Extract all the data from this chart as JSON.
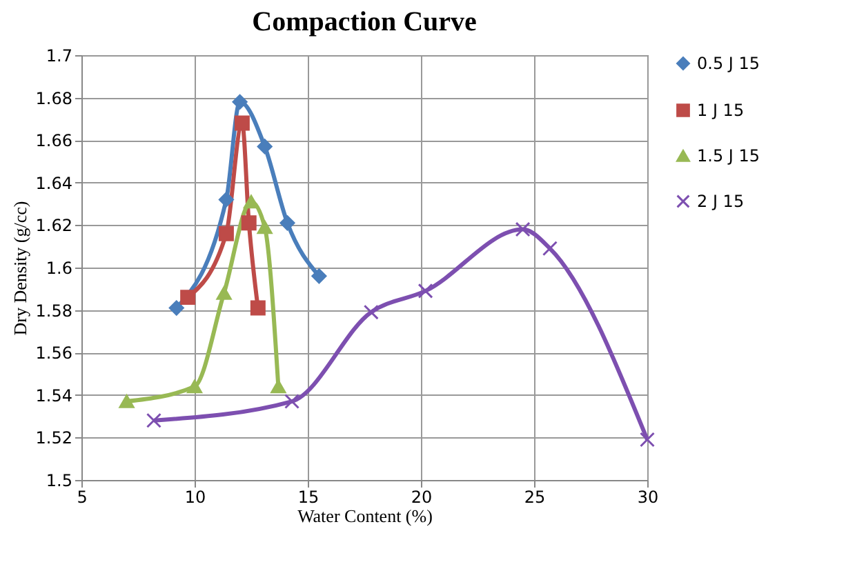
{
  "chart_data": {
    "type": "line",
    "title": "Compaction Curve",
    "xlabel": "Water Content (%)",
    "ylabel": "Dry Density (g/cc)",
    "xlim": [
      5,
      30
    ],
    "xticks": [
      5,
      10,
      15,
      20,
      25,
      30
    ],
    "ylim": [
      1.5,
      1.7
    ],
    "yticks": [
      1.5,
      1.52,
      1.54,
      1.56,
      1.58,
      1.6,
      1.62,
      1.64,
      1.66,
      1.68,
      1.7
    ],
    "grid": true,
    "legend": "right",
    "line_style": "solid",
    "series": [
      {
        "name": "0.5 J 15",
        "color": "#4a7ebb",
        "marker": "diamond",
        "x": [
          9.2,
          11.4,
          12.0,
          13.1,
          14.1,
          15.5
        ],
        "values": [
          1.581,
          1.632,
          1.678,
          1.657,
          1.621,
          1.596
        ]
      },
      {
        "name": "1 J 15",
        "color": "#be4b48",
        "marker": "square",
        "x": [
          9.7,
          11.4,
          12.1,
          12.4,
          12.8
        ],
        "values": [
          1.586,
          1.616,
          1.668,
          1.621,
          1.581
        ]
      },
      {
        "name": "1.5 J 15",
        "color": "#98b954",
        "marker": "triangle",
        "x": [
          7.0,
          10.0,
          11.3,
          12.5,
          13.1,
          13.7
        ],
        "values": [
          1.537,
          1.544,
          1.588,
          1.631,
          1.619,
          1.544
        ]
      },
      {
        "name": "2 J 15",
        "color": "#7d4fb0",
        "marker": "cross",
        "x": [
          8.2,
          14.3,
          17.8,
          20.2,
          24.5,
          25.7,
          30.0
        ],
        "values": [
          1.528,
          1.537,
          1.579,
          1.589,
          1.618,
          1.609,
          1.519
        ]
      }
    ]
  }
}
